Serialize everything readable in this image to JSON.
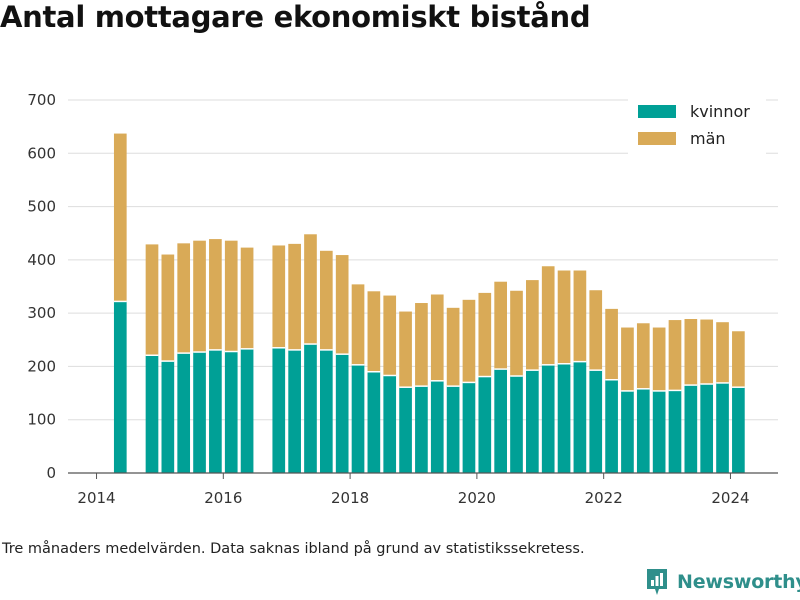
{
  "title": "Antal mottagare ekonomiskt bistånd",
  "footnote": "Tre månaders medelvärden. Data saknas ibland på grund av statistikssekretess.",
  "brand": {
    "name": "Newsworthy",
    "icon": "newsworthy-logo-icon",
    "color": "#2f8f8b"
  },
  "colors": {
    "kvinnor": "#00a096",
    "man": "#d9aa57",
    "grid": "#dddddd",
    "axis": "#555555"
  },
  "chart_data": {
    "type": "bar",
    "stacked": true,
    "xlim": [
      2013.55,
      2024.75
    ],
    "ylim": [
      0,
      700
    ],
    "yticks": [
      0,
      100,
      200,
      300,
      400,
      500,
      600,
      700
    ],
    "xticks": [
      2014,
      2016,
      2018,
      2020,
      2022,
      2024
    ],
    "legend_position": "top-right",
    "grid": true,
    "x": [
      2014.375,
      2014.875,
      2015.125,
      2015.375,
      2015.625,
      2015.875,
      2016.125,
      2016.375,
      2016.875,
      2017.125,
      2017.375,
      2017.625,
      2017.875,
      2018.125,
      2018.375,
      2018.625,
      2018.875,
      2019.125,
      2019.375,
      2019.625,
      2019.875,
      2020.125,
      2020.375,
      2020.625,
      2020.875,
      2021.125,
      2021.375,
      2021.625,
      2021.875,
      2022.125,
      2022.375,
      2022.625,
      2022.875,
      2023.125,
      2023.375,
      2023.625,
      2023.875,
      2024.125
    ],
    "series": [
      {
        "name": "kvinnor",
        "values": [
          322,
          221,
          210,
          225,
          227,
          231,
          228,
          233,
          235,
          231,
          242,
          231,
          223,
          203,
          190,
          183,
          161,
          163,
          173,
          163,
          170,
          181,
          195,
          182,
          193,
          203,
          205,
          209,
          193,
          175,
          154,
          158,
          154,
          155,
          165,
          167,
          169,
          161
        ]
      },
      {
        "name": "män",
        "values": [
          315,
          208,
          200,
          206,
          209,
          208,
          208,
          190,
          192,
          199,
          206,
          186,
          186,
          151,
          151,
          150,
          142,
          156,
          162,
          147,
          155,
          157,
          164,
          160,
          169,
          185,
          175,
          171,
          150,
          133,
          119,
          123,
          119,
          132,
          124,
          121,
          114,
          105
        ]
      }
    ]
  }
}
